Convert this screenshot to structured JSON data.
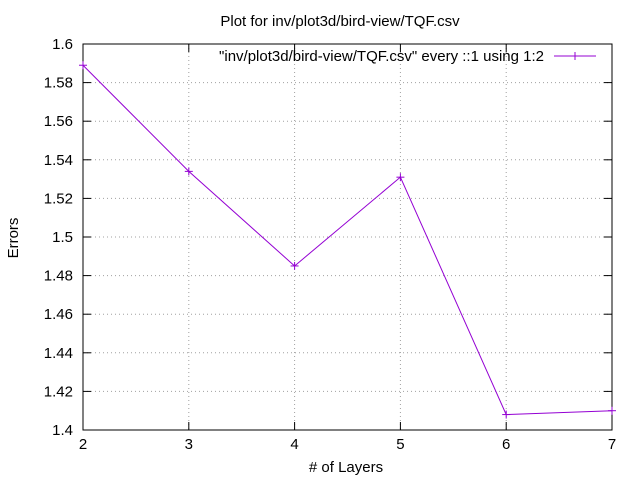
{
  "chart_data": {
    "type": "line",
    "title": "Plot for inv/plot3d/bird-view/TQF.csv",
    "xlabel": "# of Layers",
    "ylabel": "Errors",
    "xlim": [
      2,
      7
    ],
    "ylim": [
      1.4,
      1.6
    ],
    "x_ticks": [
      "2",
      "3",
      "4",
      "5",
      "6",
      "7"
    ],
    "y_ticks": [
      "1.4",
      "1.42",
      "1.44",
      "1.46",
      "1.48",
      "1.5",
      "1.52",
      "1.54",
      "1.56",
      "1.58",
      "1.6"
    ],
    "grid": true,
    "legend_position": "top-right",
    "series": [
      {
        "name": "\"inv/plot3d/bird-view/TQF.csv\" every ::1 using 1:2",
        "color": "#9400d3",
        "marker": "plus",
        "x": [
          2,
          3,
          4,
          5,
          6,
          7
        ],
        "y": [
          1.589,
          1.534,
          1.485,
          1.531,
          1.408,
          1.41
        ]
      }
    ]
  }
}
